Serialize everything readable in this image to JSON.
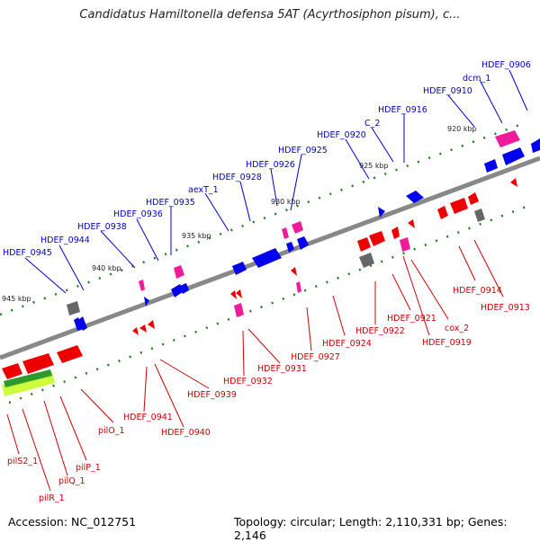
{
  "title": "Candidatus Hamiltonella defensa 5AT (Acyrthosiphon pisum), c...",
  "accession_label": "Accession: NC_012751",
  "topology_label": "Topology: circular; Length: 2,110,331 bp; Genes: 2,146",
  "colors": {
    "blue_label": "#0000cc",
    "red_label": "#cc0000",
    "backbone": "#888888",
    "tick": "#208020"
  },
  "ruler_labels": [
    "920 kbp",
    "925 kbp",
    "930 kbp",
    "935 kbp",
    "940 kbp",
    "945 kbp"
  ],
  "blue_labels": [
    "HDEF_0906",
    "dcm_1",
    "HDEF_0910",
    "HDEF_0916",
    "C_2",
    "HDEF_0920",
    "HDEF_0925",
    "HDEF_0926",
    "HDEF_0928",
    "aexT_1",
    "HDEF_0935",
    "HDEF_0936",
    "HDEF_0938",
    "HDEF_0944",
    "HDEF_0945"
  ],
  "red_labels": [
    "HDEF_0914",
    "HDEF_0913",
    "HDEF_0921",
    "cox_2",
    "HDEF_0922",
    "HDEF_0919",
    "HDEF_0924",
    "HDEF_0927",
    "HDEF_0931",
    "HDEF_0932",
    "HDEF_0939",
    "HDEF_0941",
    "HDEF_0940",
    "pilO_1",
    "pilP_1",
    "pilS2_1",
    "pilQ_1",
    "pilR_1"
  ]
}
